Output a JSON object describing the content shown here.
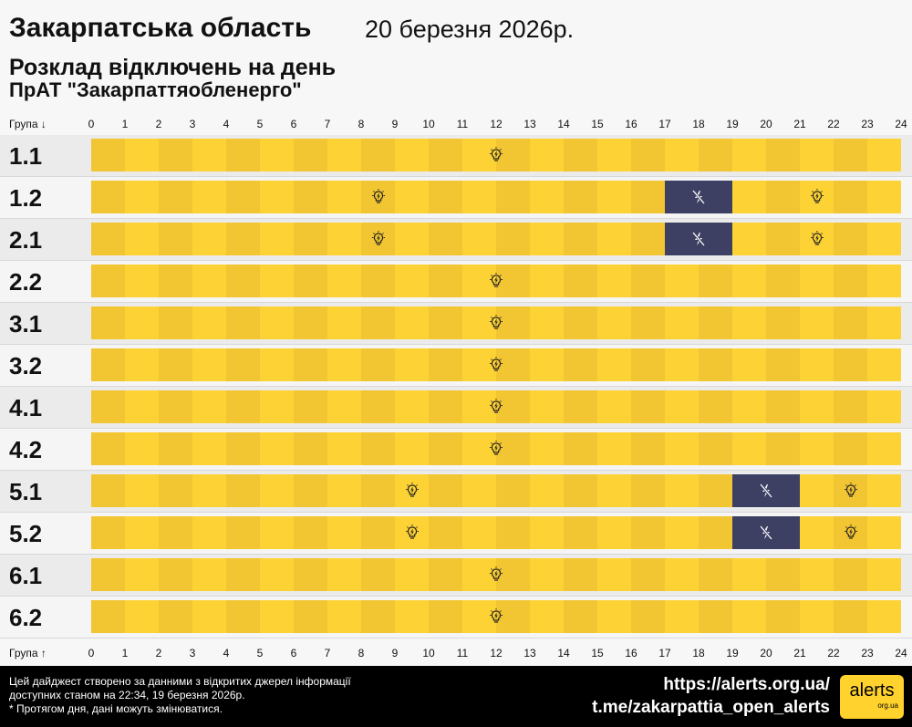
{
  "header": {
    "region": "Закарпатська область",
    "date": "20 березня 2026р.",
    "subtitle": "Розклад відключень на день",
    "company": "ПрАТ \"Закарпаттяобленерго\""
  },
  "axis": {
    "top_label": "Група ↓",
    "bottom_label": "Група ↑"
  },
  "colors": {
    "on_even": "#f2c532",
    "on_odd": "#fdd235",
    "off": "#3d4063",
    "label_bg_a": "#ebebeb",
    "label_bg_b": "#f5f5f5"
  },
  "chart_data": {
    "type": "table",
    "x_ticks": [
      "0",
      "1",
      "2",
      "3",
      "4",
      "5",
      "6",
      "7",
      "8",
      "9",
      "10",
      "11",
      "12",
      "13",
      "14",
      "15",
      "16",
      "17",
      "18",
      "19",
      "20",
      "21",
      "22",
      "23",
      "24"
    ],
    "xlim": [
      0,
      24
    ],
    "groups": [
      {
        "name": "1.1",
        "outages": []
      },
      {
        "name": "1.2",
        "outages": [
          [
            17,
            19
          ]
        ]
      },
      {
        "name": "2.1",
        "outages": [
          [
            17,
            19
          ]
        ]
      },
      {
        "name": "2.2",
        "outages": []
      },
      {
        "name": "3.1",
        "outages": []
      },
      {
        "name": "3.2",
        "outages": []
      },
      {
        "name": "4.1",
        "outages": []
      },
      {
        "name": "4.2",
        "outages": []
      },
      {
        "name": "5.1",
        "outages": [
          [
            19,
            21
          ]
        ]
      },
      {
        "name": "5.2",
        "outages": [
          [
            19,
            21
          ]
        ]
      },
      {
        "name": "6.1",
        "outages": []
      },
      {
        "name": "6.2",
        "outages": []
      }
    ],
    "icons": {
      "power_on": "lightbulb-icon",
      "power_off": "no-power-icon"
    }
  },
  "footer": {
    "line1": "Цей дайджест створено за данними з відкритих джерел інформації",
    "line2": "доступних станом на 22:34, 19 березня 2026р.",
    "line3": "* Протягом дня, дані можуть змінюватися.",
    "link1": "https://alerts.org.ua/",
    "link2": "t.me/zakarpattia_open_alerts",
    "logo_text": "alerts",
    "logo_sub": "org.ua"
  }
}
